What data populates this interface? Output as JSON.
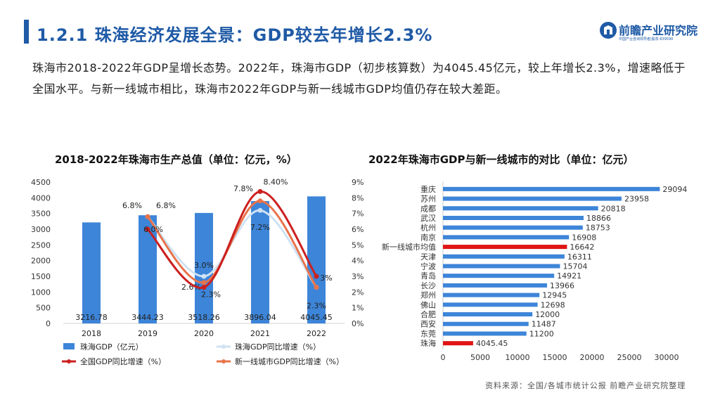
{
  "header": {
    "title": "1.2.1 珠海经济发展全景：GDP较去年增长2.3%"
  },
  "logo": {
    "name": "前瞻产业研究院",
    "sub": "中国产业咨询领导者|股票:839590"
  },
  "lead_text": "珠海市2018-2022年GDP呈增长态势。2022年，珠海市GDP（初步核算数）为4045.45亿元，较上年增长2.3%，增速略低于全国水平。与新一线城市相比，珠海市2022年GDP与新一线城市GDP均值仍存在较大差距。",
  "source": "资料来源：全国/各城市统计公报 前瞻产业研究院整理",
  "colors": {
    "bar": "#3d85d8",
    "yoy": "#cfe2f3",
    "national": "#cc1f1f",
    "newtier": "#e8734a",
    "highlight": "#e01414"
  },
  "chart_data": [
    {
      "type": "bar",
      "title": "2018-2022年珠海市生产总值（单位：亿元，%）",
      "categories": [
        "2018",
        "2019",
        "2020",
        "2021",
        "2022"
      ],
      "ylim": [
        0,
        4500
      ],
      "y_ticks": [
        "0",
        "500",
        "1000",
        "1500",
        "2000",
        "2500",
        "3000",
        "3500",
        "4000",
        "4500"
      ],
      "y2lim": [
        0,
        9
      ],
      "y2_ticks": [
        "0%",
        "1%",
        "2%",
        "3%",
        "4%",
        "5%",
        "6%",
        "7%",
        "8%",
        "9%"
      ],
      "bar_labels": [
        "3216.78",
        "3444.23",
        "3518.26",
        "3896.04",
        "4045.45"
      ],
      "series": [
        {
          "name": "珠海GDP（亿元）",
          "kind": "bar",
          "axis": "left",
          "values": [
            3216.78,
            3444.23,
            3518.26,
            3896.04,
            4045.45
          ]
        },
        {
          "name": "珠海GDP同比增速（%）",
          "kind": "line",
          "axis": "right",
          "color": "#cfe2f3",
          "x": [
            "2019",
            "2020",
            "2021",
            "2022"
          ],
          "values": [
            6.8,
            3.0,
            7.2,
            2.3
          ],
          "labels": [
            "6.8%",
            "3.0%",
            "7.2%",
            "2.3%"
          ]
        },
        {
          "name": "全国GDP同比增速（%）",
          "kind": "line",
          "axis": "right",
          "color": "#cc1f1f",
          "x": [
            "2019",
            "2020",
            "2021",
            "2022"
          ],
          "values": [
            6.0,
            2.3,
            8.4,
            3.0
          ],
          "labels": [
            "6.0%",
            "2.3%",
            "8.40%",
            "3%"
          ]
        },
        {
          "name": "新一线城市GDP同比增速（%）",
          "kind": "line",
          "axis": "right",
          "color": "#e8734a",
          "x": [
            "2019",
            "2020",
            "2021",
            "2022"
          ],
          "values": [
            6.8,
            2.6,
            7.8,
            2.3
          ],
          "labels": [
            "6.8%",
            "2.6%",
            "7.8%",
            ""
          ]
        }
      ],
      "legend": [
        "珠海GDP（亿元）",
        "珠海GDP同比增速（%）",
        "全国GDP同比增速（%）",
        "新一线城市GDP同比增速（%）"
      ],
      "legend_position": "bottom",
      "grid": false
    },
    {
      "type": "bar",
      "orientation": "horizontal",
      "title": "2022年珠海市GDP与新一线城市的对比（单位：亿元）",
      "categories": [
        "重庆",
        "苏州",
        "成都",
        "武汉",
        "杭州",
        "南京",
        "新一线城市均值",
        "天津",
        "宁波",
        "青岛",
        "长沙",
        "郑州",
        "佛山",
        "合肥",
        "西安",
        "东莞",
        "珠海"
      ],
      "values": [
        29094,
        23958,
        20818,
        18866,
        18753,
        16908,
        16642,
        16311,
        15704,
        14921,
        13966,
        12945,
        12698,
        12000,
        11487,
        11200,
        4045.45
      ],
      "value_labels": [
        "29094",
        "23958",
        "20818",
        "18866",
        "18753",
        "16908",
        "16642",
        "16311",
        "15704",
        "14921",
        "13966",
        "12945",
        "12698",
        "12000",
        "11487",
        "11200",
        "4045.45"
      ],
      "highlight": [
        "新一线城市均值",
        "珠海"
      ],
      "xlim": [
        0,
        30000
      ],
      "x_ticks": [
        "0",
        "5000",
        "10000",
        "15000",
        "20000",
        "25000",
        "30000"
      ],
      "grid": false
    }
  ]
}
